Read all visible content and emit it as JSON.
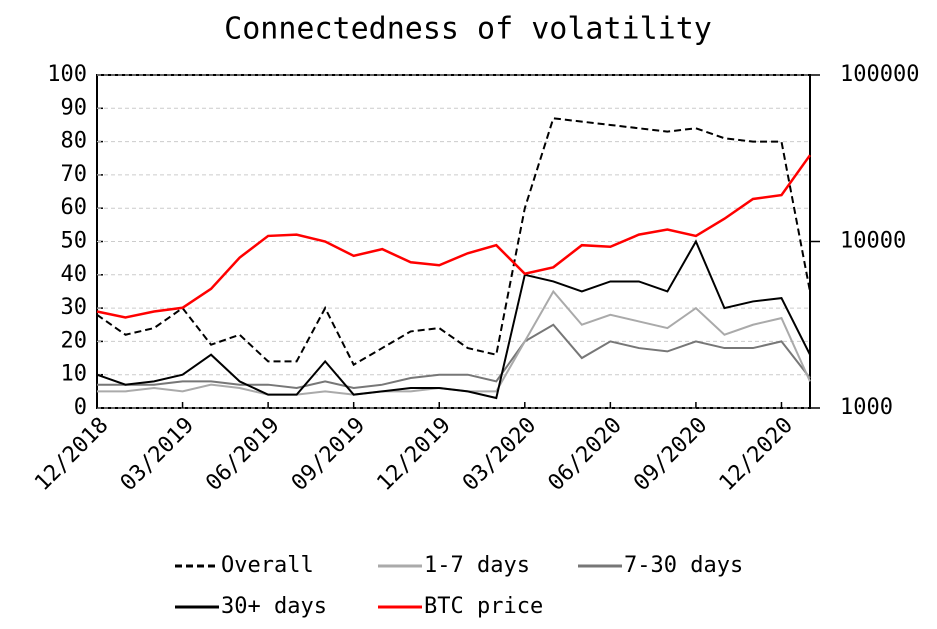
{
  "chart_data": {
    "type": "line",
    "title": "Connectedness of volatility",
    "categories": [
      "12/2018",
      null,
      null,
      "03/2019",
      null,
      null,
      "06/2019",
      null,
      null,
      "09/2019",
      null,
      null,
      "12/2019",
      null,
      null,
      "03/2020",
      null,
      null,
      "06/2020",
      null,
      null,
      "09/2020",
      null,
      null,
      "12/2020",
      null
    ],
    "series": [
      {
        "name": "Overall",
        "color": "#000000",
        "dash": "dashed",
        "values": [
          28,
          22,
          24,
          30,
          19,
          22,
          14,
          14,
          30,
          13,
          18,
          23,
          24,
          18,
          16,
          60,
          87,
          86,
          85,
          84,
          83,
          84,
          81,
          80,
          80,
          35
        ]
      },
      {
        "name": "1-7 days",
        "color": "#aaaaaa",
        "values": [
          5,
          5,
          6,
          5,
          7,
          6,
          4,
          4,
          5,
          4,
          5,
          5,
          6,
          5,
          5,
          20,
          35,
          25,
          28,
          26,
          24,
          30,
          22,
          25,
          27,
          8
        ]
      },
      {
        "name": "7-30 days",
        "color": "#777777",
        "values": [
          7,
          7,
          7,
          8,
          8,
          7,
          7,
          6,
          8,
          6,
          7,
          9,
          10,
          10,
          8,
          20,
          25,
          15,
          20,
          18,
          17,
          20,
          18,
          18,
          20,
          9
        ]
      },
      {
        "name": "30+ days",
        "color": "#000000",
        "values": [
          10,
          7,
          8,
          10,
          16,
          8,
          4,
          4,
          14,
          4,
          5,
          6,
          6,
          5,
          3,
          40,
          38,
          35,
          38,
          38,
          35,
          50,
          30,
          32,
          33,
          16
        ]
      },
      {
        "name": "BTC price",
        "color": "#ff0000",
        "axis": "y2",
        "values": [
          3800,
          3500,
          3800,
          4000,
          5200,
          8000,
          10800,
          11000,
          10000,
          8200,
          9000,
          7500,
          7200,
          8500,
          9500,
          6400,
          7000,
          9500,
          9300,
          11000,
          11800,
          10800,
          13700,
          18000,
          19000,
          33000
        ]
      }
    ],
    "ylim": [
      0,
      100
    ],
    "yticks": [
      0,
      10,
      20,
      30,
      40,
      50,
      60,
      70,
      80,
      90,
      100
    ],
    "y2lim": [
      1000,
      100000
    ],
    "y2ticks": [
      1000,
      10000,
      100000
    ],
    "y2log": true,
    "grid": true
  }
}
